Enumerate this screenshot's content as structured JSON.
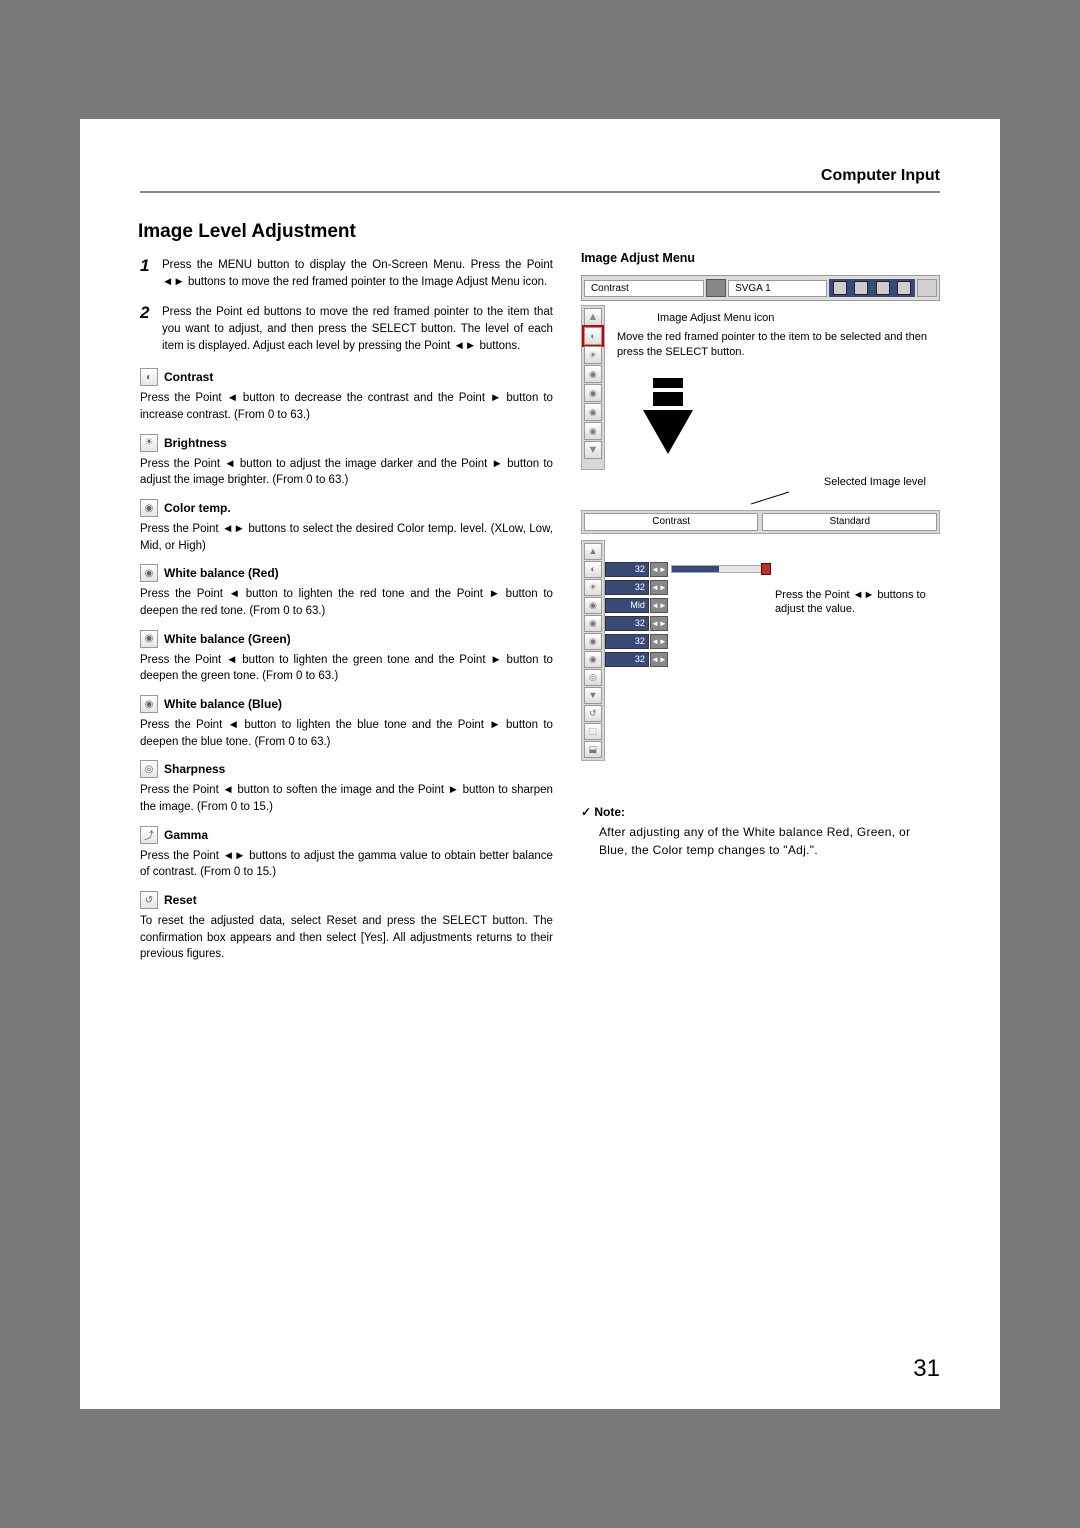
{
  "header": {
    "section": "Computer Input"
  },
  "main": {
    "heading": "Image Level Adjustment",
    "steps": [
      {
        "n": "1",
        "text": "Press the MENU button to display the On-Screen Menu.  Press the Point ◄► buttons to move the red framed pointer to the Image Adjust Menu icon."
      },
      {
        "n": "2",
        "text": "Press the Point ed buttons to move the red framed pointer to the item that you want to adjust, and then press the SELECT button.  The level of each item is displayed.  Adjust each level by pressing the Point ◄► buttons."
      }
    ],
    "items": [
      {
        "icon": "◐",
        "title": "Contrast",
        "text": "Press the Point ◄ button to decrease the contrast and the Point ► button to increase contrast. (From 0 to 63.)"
      },
      {
        "icon": "☀",
        "title": "Brightness",
        "text": "Press the Point ◄ button to adjust the image darker and the Point ► button to adjust the image brighter. (From 0 to 63.)"
      },
      {
        "icon": "◉",
        "title": "Color temp.",
        "text": "Press the Point ◄► buttons to select the desired Color temp. level. (XLow, Low, Mid, or High)"
      },
      {
        "icon": "◉",
        "title": "White balance (Red)",
        "text": "Press the Point ◄ button to lighten the red tone and the Point ► button to deepen the red tone. (From 0 to 63.)"
      },
      {
        "icon": "◉",
        "title": "White balance (Green)",
        "text": "Press the Point ◄ button to lighten the green tone and the Point ► button to deepen the green tone. (From 0 to 63.)"
      },
      {
        "icon": "◉",
        "title": "White balance (Blue)",
        "text": "Press the Point ◄ button to lighten the blue tone and the Point ► button to deepen the blue tone. (From 0 to 63.)"
      },
      {
        "icon": "◎",
        "title": "Sharpness",
        "text": "Press the Point ◄ button to soften the image and the Point ► button to sharpen the image. (From 0 to 15.)"
      },
      {
        "icon": "⤴",
        "title": "Gamma",
        "text": "Press the Point ◄► buttons to adjust the gamma value to obtain better balance of contrast. (From 0 to 15.)"
      },
      {
        "icon": "↺",
        "title": "Reset",
        "text": "To reset the adjusted data, select Reset and press the SELECT button. The confirmation box appears and then select [Yes]. All adjustments returns to their previous figures."
      }
    ]
  },
  "right": {
    "menu_title": "Image Adjust Menu",
    "menubar_label": "Contrast",
    "svga_label": "SVGA 1",
    "annotation_icon": "Image Adjust Menu icon",
    "annotation_pointer": "Move the red framed pointer to the item to be selected and then press the SELECT button.",
    "selected_label": "Selected Image level",
    "selected_left": "Contrast",
    "selected_right": "Standard",
    "adjust_rows": [
      {
        "val": "32",
        "bar": true
      },
      {
        "val": "32"
      },
      {
        "val": "Mid"
      },
      {
        "val": "32"
      },
      {
        "val": "32"
      },
      {
        "val": "32"
      }
    ],
    "press_note": "Press the Point  ◄► buttons to adjust the value.",
    "strip1": [
      "▲",
      "◐",
      "☀",
      "◉",
      "◉",
      "◉",
      "◉",
      "▼"
    ],
    "strip2": [
      "▲",
      "◐",
      "☀",
      "◉",
      "◉",
      "◉",
      "◉",
      "◎",
      "▼",
      "↺",
      "⬚",
      "⬓"
    ]
  },
  "note": {
    "title": "Note:",
    "text": "After adjusting any of the White balance Red, Green, or Blue, the Color temp changes to \"Adj.\"."
  },
  "page_number": "31",
  "colors": {
    "page_bg": "#ffffff",
    "body_bg": "#7a7a7a",
    "dark_blue": "#3a4a77",
    "panel_grey": "#d8d8d8"
  }
}
